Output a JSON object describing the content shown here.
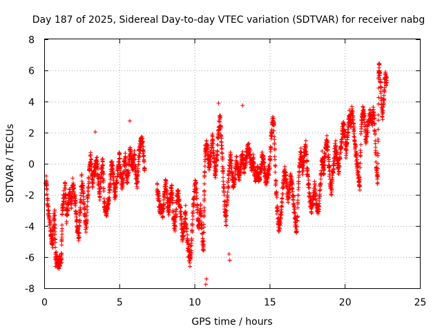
{
  "chart_data": {
    "type": "scatter",
    "title": "Day 187 of 2025, Sidereal Day-to-day VTEC variation (SDTVAR) for receiver nabg",
    "xlabel": "GPS time / hours",
    "ylabel": "SDTVAR / TECUs",
    "xlim": [
      0,
      25
    ],
    "ylim": [
      -8,
      8
    ],
    "xticks": [
      0,
      5,
      10,
      15,
      20,
      25
    ],
    "yticks": [
      -8,
      -6,
      -4,
      -2,
      0,
      2,
      4,
      6,
      8
    ],
    "grid": true,
    "marker": "+",
    "color": "#ff0000",
    "series": [
      {
        "name": "SDTVAR",
        "trace": [
          [
            0.0,
            -0.5
          ],
          [
            0.15,
            -1.2
          ],
          [
            0.25,
            -2.9
          ],
          [
            0.35,
            -3.4
          ],
          [
            0.45,
            -4.5
          ],
          [
            0.55,
            -5.2
          ],
          [
            0.6,
            -4.0
          ],
          [
            0.7,
            -3.2
          ],
          [
            0.75,
            -5.8
          ],
          [
            0.85,
            -6.2
          ],
          [
            0.95,
            -6.4
          ],
          [
            1.05,
            -6.3
          ],
          [
            1.15,
            -6.0
          ],
          [
            1.2,
            -3.0
          ],
          [
            1.3,
            -2.2
          ],
          [
            1.4,
            -1.5
          ],
          [
            1.5,
            -3.5
          ],
          [
            1.6,
            -2.5
          ],
          [
            1.7,
            -1.8
          ],
          [
            1.8,
            -2.6
          ],
          [
            1.9,
            -1.2
          ],
          [
            2.0,
            -2.0
          ],
          [
            2.1,
            -2.8
          ],
          [
            2.2,
            -4.3
          ],
          [
            2.3,
            -4.6
          ],
          [
            2.4,
            -3.0
          ],
          [
            2.5,
            -1.0
          ],
          [
            2.6,
            -1.8
          ],
          [
            2.7,
            -3.5
          ],
          [
            2.8,
            -4.2
          ],
          [
            2.9,
            -2.0
          ],
          [
            3.0,
            -0.5
          ],
          [
            3.1,
            0.5
          ],
          [
            3.2,
            -1.2
          ],
          [
            3.3,
            -0.8
          ],
          [
            3.4,
            -0.2
          ],
          [
            3.5,
            0.3
          ],
          [
            3.6,
            -1.0
          ],
          [
            3.7,
            -2.0
          ],
          [
            3.8,
            -0.5
          ],
          [
            3.9,
            0.2
          ],
          [
            4.0,
            -2.6
          ],
          [
            4.1,
            -3.2
          ],
          [
            4.2,
            -3.0
          ],
          [
            4.3,
            -2.2
          ],
          [
            4.4,
            -1.0
          ],
          [
            4.5,
            0.2
          ],
          [
            4.6,
            -0.8
          ],
          [
            4.7,
            -2.0
          ],
          [
            4.8,
            -1.5
          ],
          [
            4.9,
            -0.3
          ],
          [
            5.0,
            0.5
          ],
          [
            5.1,
            -0.8
          ],
          [
            5.2,
            -1.5
          ],
          [
            5.3,
            -0.2
          ],
          [
            5.4,
            0.4
          ],
          [
            5.5,
            -1.0
          ],
          [
            5.6,
            -0.5
          ],
          [
            5.7,
            0.8
          ],
          [
            5.8,
            0.2
          ],
          [
            5.9,
            -0.2
          ],
          [
            6.0,
            0.5
          ],
          [
            6.1,
            -0.8
          ],
          [
            6.2,
            -1.2
          ],
          [
            6.3,
            0.6
          ],
          [
            6.4,
            1.2
          ],
          [
            6.5,
            1.6
          ],
          [
            6.6,
            0.8
          ],
          [
            6.7,
            -0.6
          ],
          [
            7.5,
            -1.5
          ],
          [
            7.6,
            -2.2
          ],
          [
            7.7,
            -3.0
          ],
          [
            7.8,
            -2.6
          ],
          [
            7.9,
            -3.2
          ],
          [
            8.0,
            -1.8
          ],
          [
            8.1,
            -1.2
          ],
          [
            8.2,
            -2.4
          ],
          [
            8.3,
            -3.0
          ],
          [
            8.4,
            -2.0
          ],
          [
            8.5,
            -1.5
          ],
          [
            8.6,
            -3.5
          ],
          [
            8.7,
            -4.0
          ],
          [
            8.8,
            -2.6
          ],
          [
            8.9,
            -1.8
          ],
          [
            9.0,
            -2.4
          ],
          [
            9.1,
            -3.4
          ],
          [
            9.2,
            -4.8
          ],
          [
            9.3,
            -4.2
          ],
          [
            9.4,
            -3.0
          ],
          [
            9.5,
            -4.8
          ],
          [
            9.6,
            -5.6
          ],
          [
            9.7,
            -6.2
          ],
          [
            9.8,
            -5.2
          ],
          [
            9.9,
            -2.8
          ],
          [
            10.0,
            -1.6
          ],
          [
            10.1,
            -1.2
          ],
          [
            10.2,
            -3.2
          ],
          [
            10.3,
            -4.4
          ],
          [
            10.4,
            -2.6
          ],
          [
            10.5,
            -4.5
          ],
          [
            10.6,
            -5.8
          ],
          [
            10.65,
            -2.0
          ],
          [
            10.7,
            0.6
          ],
          [
            10.8,
            1.4
          ],
          [
            10.9,
            0.5
          ],
          [
            11.0,
            -0.3
          ],
          [
            11.1,
            0.8
          ],
          [
            11.2,
            1.6
          ],
          [
            11.3,
            0.2
          ],
          [
            11.4,
            -0.8
          ],
          [
            11.5,
            0.4
          ],
          [
            11.6,
            2.2
          ],
          [
            11.7,
            3.0
          ],
          [
            11.8,
            1.2
          ],
          [
            11.9,
            -0.6
          ],
          [
            12.0,
            -2.5
          ],
          [
            12.1,
            -3.8
          ],
          [
            12.2,
            -1.8
          ],
          [
            12.3,
            -0.6
          ],
          [
            12.4,
            0.6
          ],
          [
            12.5,
            -0.5
          ],
          [
            12.6,
            -1.5
          ],
          [
            12.7,
            -0.8
          ],
          [
            12.8,
            0.3
          ],
          [
            12.9,
            -0.5
          ],
          [
            13.0,
            -0.8
          ],
          [
            13.1,
            0.2
          ],
          [
            13.2,
            0.5
          ],
          [
            13.3,
            -0.3
          ],
          [
            13.4,
            0.2
          ],
          [
            13.5,
            0.8
          ],
          [
            13.6,
            1.0
          ],
          [
            13.7,
            0.6
          ],
          [
            13.8,
            -0.2
          ],
          [
            13.9,
            0.4
          ],
          [
            14.0,
            -0.6
          ],
          [
            14.1,
            -0.9
          ],
          [
            14.2,
            -0.4
          ],
          [
            14.3,
            -1.0
          ],
          [
            14.4,
            -0.5
          ],
          [
            14.5,
            0.4
          ],
          [
            14.6,
            0.2
          ],
          [
            14.7,
            -0.8
          ],
          [
            14.8,
            -1.2
          ],
          [
            14.9,
            -0.6
          ],
          [
            15.0,
            -0.2
          ],
          [
            15.1,
            1.5
          ],
          [
            15.2,
            3.0
          ],
          [
            15.3,
            2.2
          ],
          [
            15.4,
            -1.0
          ],
          [
            15.5,
            -3.0
          ],
          [
            15.6,
            -4.0
          ],
          [
            15.7,
            -3.8
          ],
          [
            15.8,
            -2.8
          ],
          [
            15.9,
            -1.2
          ],
          [
            16.0,
            -0.5
          ],
          [
            16.1,
            -1.0
          ],
          [
            16.2,
            -2.2
          ],
          [
            16.3,
            -2.0
          ],
          [
            16.4,
            -0.8
          ],
          [
            16.5,
            -1.5
          ],
          [
            16.6,
            -2.5
          ],
          [
            16.7,
            -3.6
          ],
          [
            16.8,
            -4.5
          ],
          [
            16.9,
            -2.0
          ],
          [
            17.0,
            0.2
          ],
          [
            17.1,
            0.8
          ],
          [
            17.2,
            -0.5
          ],
          [
            17.3,
            0.6
          ],
          [
            17.4,
            1.2
          ],
          [
            17.5,
            -0.2
          ],
          [
            17.6,
            -1.5
          ],
          [
            17.7,
            -2.4
          ],
          [
            17.8,
            -3.0
          ],
          [
            17.9,
            -2.2
          ],
          [
            18.0,
            -1.4
          ],
          [
            18.1,
            -2.5
          ],
          [
            18.2,
            -3.2
          ],
          [
            18.3,
            -2.4
          ],
          [
            18.4,
            -1.0
          ],
          [
            18.5,
            0.5
          ],
          [
            18.6,
            -0.6
          ],
          [
            18.7,
            0.8
          ],
          [
            18.8,
            1.6
          ],
          [
            18.9,
            0.6
          ],
          [
            19.0,
            -0.8
          ],
          [
            19.1,
            -1.8
          ],
          [
            19.2,
            -0.6
          ],
          [
            19.3,
            0.4
          ],
          [
            19.4,
            1.2
          ],
          [
            19.5,
            0.2
          ],
          [
            19.6,
            -0.4
          ],
          [
            19.7,
            0.8
          ],
          [
            19.8,
            1.6
          ],
          [
            19.9,
            2.6
          ],
          [
            20.0,
            1.8
          ],
          [
            20.1,
            0.6
          ],
          [
            20.2,
            2.0
          ],
          [
            20.3,
            3.2
          ],
          [
            20.4,
            2.6
          ],
          [
            20.5,
            3.6
          ],
          [
            20.6,
            2.2
          ],
          [
            20.7,
            1.0
          ],
          [
            20.8,
            0.2
          ],
          [
            20.9,
            -0.8
          ],
          [
            21.0,
            -1.4
          ],
          [
            21.1,
            2.4
          ],
          [
            21.2,
            3.4
          ],
          [
            21.3,
            3.0
          ],
          [
            21.4,
            1.4
          ],
          [
            21.5,
            2.2
          ],
          [
            21.6,
            2.8
          ],
          [
            21.7,
            3.2
          ],
          [
            21.8,
            2.6
          ],
          [
            21.9,
            3.4
          ],
          [
            22.0,
            2.2
          ],
          [
            22.1,
            -0.4
          ],
          [
            22.2,
            -1.2
          ],
          [
            22.25,
            5.8
          ],
          [
            22.3,
            6.3
          ],
          [
            22.4,
            4.8
          ],
          [
            22.5,
            3.0
          ],
          [
            22.6,
            4.2
          ],
          [
            22.7,
            5.6
          ],
          [
            22.8,
            5.2
          ]
        ],
        "outliers": [
          [
            3.4,
            2.05
          ],
          [
            5.7,
            2.75
          ],
          [
            10.8,
            -7.4
          ],
          [
            10.75,
            -7.75
          ],
          [
            12.3,
            -5.8
          ],
          [
            12.35,
            -6.2
          ],
          [
            13.2,
            3.75
          ],
          [
            11.6,
            3.9
          ],
          [
            9.7,
            -6.6
          ],
          [
            0.75,
            -6.6
          ]
        ]
      }
    ]
  }
}
